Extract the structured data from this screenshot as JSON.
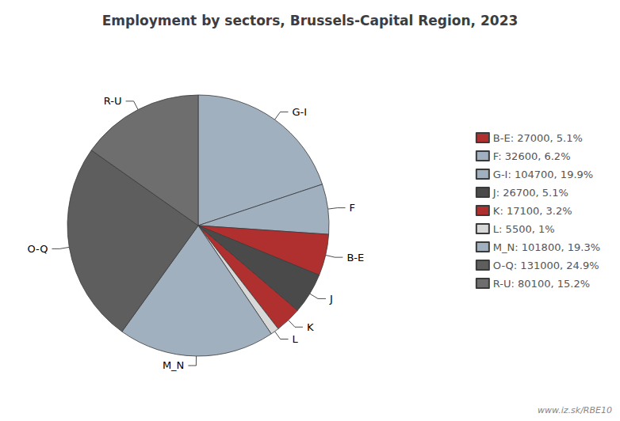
{
  "chart_data": {
    "type": "pie",
    "title": "Employment by sectors, Brussels-Capital Region, 2023",
    "categories": [
      "G-I",
      "F",
      "B-E",
      "J",
      "K",
      "L",
      "M_N",
      "O-Q",
      "R-U"
    ],
    "values": [
      104700,
      32600,
      27000,
      26700,
      17100,
      5500,
      101800,
      131000,
      80100
    ],
    "colors": [
      "#a0b0bf",
      "#a0b0bf",
      "#b03030",
      "#4a4a4a",
      "#b03030",
      "#d8d8d8",
      "#a0b0bf",
      "#5e5e5e",
      "#6e6e6e"
    ],
    "legend": "right",
    "legend_entries": [
      {
        "category": "B-E",
        "label": "B-E: 27000, 5.1%"
      },
      {
        "category": "F",
        "label": "F: 32600, 6.2%"
      },
      {
        "category": "G-I",
        "label": "G-I: 104700, 19.9%"
      },
      {
        "category": "J",
        "label": "J: 26700, 5.1%"
      },
      {
        "category": "K",
        "label": "K: 17100, 3.2%"
      },
      {
        "category": "L",
        "label": "L: 5500, 1%"
      },
      {
        "category": "M_N",
        "label": "M_N: 101800, 19.3%"
      },
      {
        "category": "O-Q",
        "label": "O-Q: 131000, 24.9%"
      },
      {
        "category": "R-U",
        "label": "R-U: 80100, 15.2%"
      }
    ],
    "watermark": "www.iz.sk/RBE10"
  }
}
